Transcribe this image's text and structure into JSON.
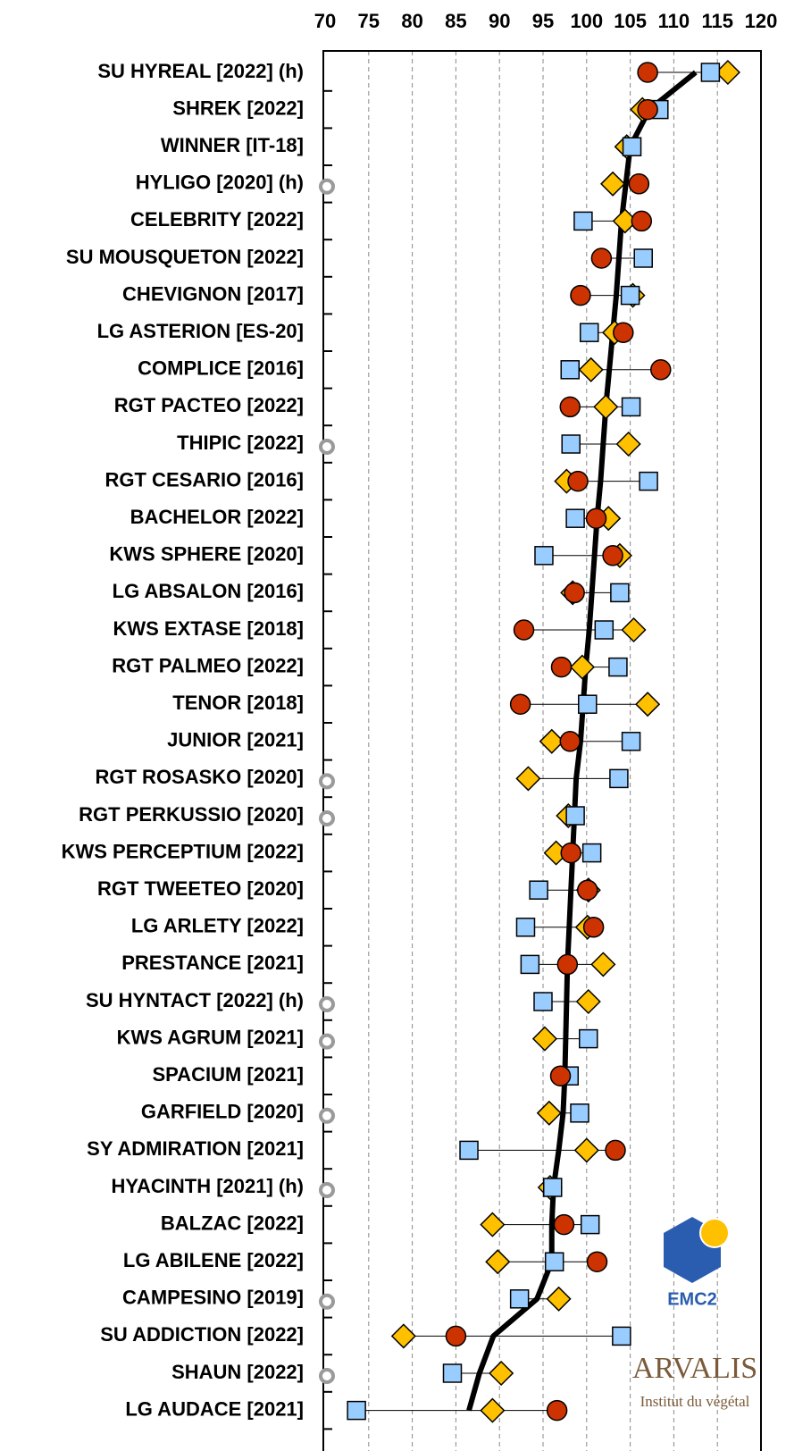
{
  "chart_data": {
    "type": "dot",
    "categories": [
      "SU HYREAL [2022] (h)",
      "SHREK [2022]",
      "WINNER [IT-18]",
      "HYLIGO [2020] (h)",
      "CELEBRITY [2022]",
      "SU MOUSQUETON [2022]",
      "CHEVIGNON [2017]",
      "LG ASTERION [ES-20]",
      "COMPLICE [2016]",
      "RGT PACTEO [2022]",
      "THIPIC [2022]",
      "RGT CESARIO [2016]",
      "BACHELOR [2022]",
      "KWS SPHERE [2020]",
      "LG ABSALON [2016]",
      "KWS EXTASE [2018]",
      "RGT PALMEO [2022]",
      "TENOR [2018]",
      "JUNIOR [2021]",
      "RGT ROSASKO [2020]",
      "RGT PERKUSSIO [2020]",
      "KWS PERCEPTIUM [2022]",
      "RGT TWEETEO [2020]",
      "LG ARLETY [2022]",
      "PRESTANCE [2021]",
      "SU HYNTACT [2022] (h)",
      "KWS AGRUM [2021]",
      "SPACIUM [2021]",
      "GARFIELD [2020]",
      "SY ADMIRATION [2021]",
      "HYACINTH [2021] (h)",
      "BALZAC [2022]",
      "LG ABILENE [2022]",
      "CAMPESINO [2019]",
      "SU ADDICTION [2022]",
      "SHAUN [2022]",
      "LG AUDACE [2021]"
    ],
    "series": [
      {
        "marker": "line",
        "color": "#000000",
        "values": [
          112.5,
          107.2,
          105,
          104.5,
          104,
          103.7,
          103.4,
          103,
          102.6,
          102.2,
          101.9,
          101.6,
          101.2,
          100.9,
          100.6,
          100.3,
          99.9,
          99.6,
          99.3,
          98.8,
          98.6,
          98.4,
          98.2,
          98,
          97.8,
          97.7,
          97.6,
          97.5,
          97.3,
          96.8,
          96.2,
          96,
          96,
          94.3,
          89.3,
          87.7,
          86.5
        ]
      },
      {
        "marker": "diamond",
        "color": "#ffc000",
        "values": [
          116.2,
          106.4,
          104.6,
          103,
          104.4,
          null,
          105.3,
          103.2,
          100.5,
          102.2,
          104.8,
          97.7,
          102.5,
          103.8,
          98.4,
          105.4,
          99.5,
          107,
          96,
          93.3,
          97.9,
          96.5,
          100.2,
          100.1,
          101.9,
          100.2,
          95.2,
          null,
          95.7,
          100,
          95.8,
          89.2,
          89.8,
          96.8,
          79,
          90.2,
          89.2
        ]
      },
      {
        "marker": "square",
        "color": "#99ccff",
        "values": [
          114.2,
          108.3,
          105.2,
          null,
          99.6,
          106.5,
          105,
          100.3,
          98.1,
          105.1,
          98.2,
          107.1,
          98.7,
          95.1,
          103.8,
          102,
          103.6,
          100.1,
          105.1,
          103.7,
          98.7,
          100.6,
          94.5,
          93,
          93.5,
          95,
          100.2,
          98,
          99.2,
          86.5,
          96.1,
          100.4,
          96.3,
          92.3,
          104,
          84.6,
          73.6
        ]
      },
      {
        "marker": "circle",
        "color": "#cc3300",
        "values": [
          107,
          107,
          null,
          106,
          106.3,
          101.7,
          99.3,
          104.2,
          108.5,
          98.1,
          null,
          99,
          101.1,
          103,
          98.6,
          92.8,
          97.1,
          92.4,
          98.1,
          null,
          null,
          98.2,
          100.1,
          100.8,
          97.8,
          null,
          null,
          97,
          null,
          103.3,
          null,
          97.4,
          101.2,
          null,
          85,
          null,
          96.6
        ]
      },
      {
        "marker": "small-circle",
        "color": "#9a9a9a",
        "values": [
          null,
          null,
          null,
          70,
          null,
          null,
          null,
          null,
          null,
          null,
          70,
          null,
          null,
          null,
          null,
          null,
          null,
          null,
          null,
          70,
          70,
          null,
          null,
          null,
          null,
          70,
          70,
          null,
          70,
          null,
          70,
          null,
          null,
          70,
          null,
          70,
          null
        ]
      }
    ],
    "xlim": [
      70,
      120
    ],
    "xticks": [
      70,
      75,
      80,
      85,
      90,
      95,
      100,
      105,
      110,
      115,
      120
    ],
    "grid": true,
    "logos": [
      "EMC2",
      "ARVALIS",
      "Institut du végétal"
    ]
  }
}
